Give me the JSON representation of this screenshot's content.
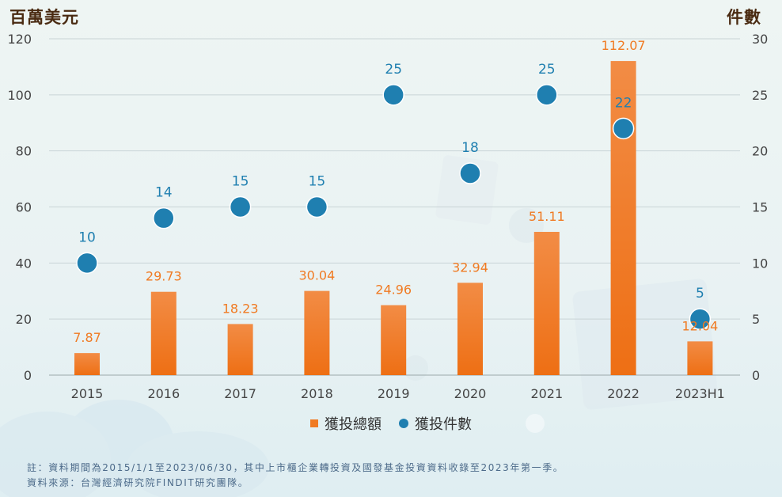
{
  "left_unit": "百萬美元",
  "right_unit": "件數",
  "legend": {
    "bars": "獲投總額",
    "dots": "獲投件數"
  },
  "notes": {
    "line1": "註：資料期間為2015/1/1至2023/06/30，其中上市櫃企業轉投資及國發基金投資資料收錄至2023年第一季。",
    "line2": "資料來源：台灣經濟研究院FINDIT研究團隊。"
  },
  "colors": {
    "bar": "#f07a22",
    "bar_label": "#f07a22",
    "dot": "#1f7fb0",
    "dot_label": "#1f7fb0",
    "axis_text": "#444444",
    "grid": "#c9d4d6"
  },
  "chart_data": {
    "type": "bar",
    "categories": [
      "2015",
      "2016",
      "2017",
      "2018",
      "2019",
      "2020",
      "2021",
      "2022",
      "2023H1"
    ],
    "series": [
      {
        "name": "獲投總額",
        "type": "bar",
        "axis": "left",
        "values": [
          7.87,
          29.73,
          18.23,
          30.04,
          24.96,
          32.94,
          51.11,
          112.07,
          12.04
        ],
        "labels": [
          "7.87",
          "29.73",
          "18.23",
          "30.04",
          "24.96",
          "32.94",
          "51.11",
          "112.07",
          "12.04"
        ]
      },
      {
        "name": "獲投件數",
        "type": "scatter",
        "axis": "right",
        "values": [
          10,
          14,
          15,
          15,
          25,
          18,
          25,
          22,
          5
        ],
        "labels": [
          "10",
          "14",
          "15",
          "15",
          "25",
          "18",
          "25",
          "22",
          "5"
        ]
      }
    ],
    "y_left": {
      "label": "百萬美元",
      "range": [
        0,
        120
      ],
      "ticks": [
        "0",
        "20",
        "40",
        "60",
        "80",
        "100",
        "120"
      ]
    },
    "y_right": {
      "label": "件數",
      "range": [
        0,
        30
      ],
      "ticks": [
        "0",
        "5",
        "10",
        "15",
        "20",
        "25",
        "30"
      ]
    },
    "grid": true,
    "legend_position": "bottom"
  }
}
